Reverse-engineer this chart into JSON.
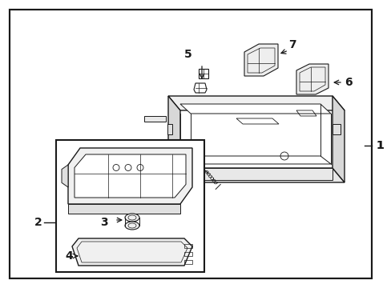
{
  "bg_color": "#ffffff",
  "line_color": "#1a1a1a",
  "line_width": 1.0,
  "fig_width": 4.89,
  "fig_height": 3.6,
  "dpi": 100
}
